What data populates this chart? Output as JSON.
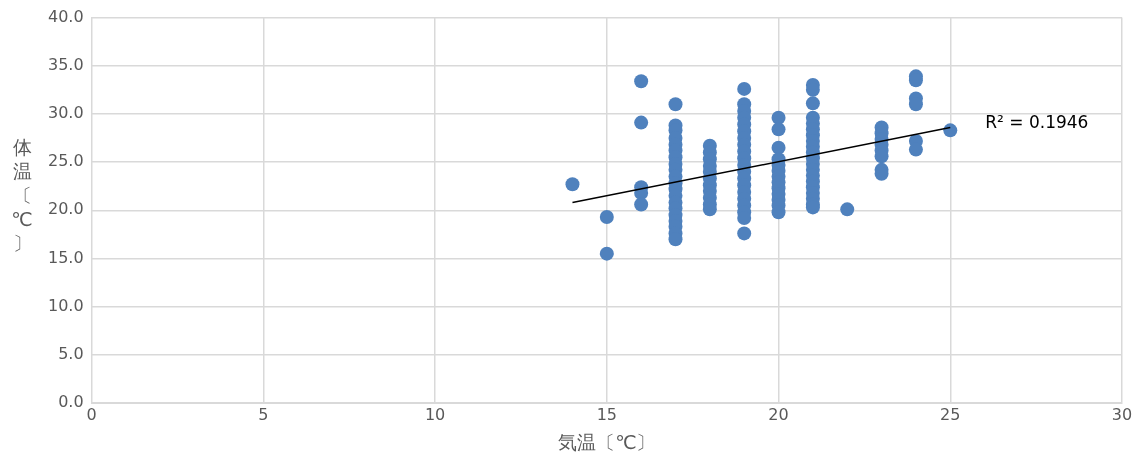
{
  "chart_data": {
    "type": "scatter",
    "xlabel": "気温〔℃〕",
    "ylabel": "体温〔℃〕",
    "series": [
      {
        "color": "#4f81bd",
        "marker": "circle",
        "x": [
          14,
          15,
          15,
          16,
          16,
          16,
          16,
          16,
          17,
          17,
          17,
          17,
          17,
          17,
          17,
          17,
          17,
          17,
          17,
          17,
          17,
          17,
          17,
          17,
          17,
          17,
          17,
          17,
          18,
          18,
          18,
          18,
          18,
          18,
          18,
          18,
          18,
          18,
          18,
          19,
          19,
          19,
          19,
          19,
          19,
          19,
          19,
          19,
          19,
          19,
          19,
          19,
          19,
          19,
          19,
          19,
          19,
          19,
          19,
          20,
          20,
          20,
          20,
          20,
          20,
          20,
          20,
          20,
          20,
          20,
          20,
          20,
          21,
          21,
          21,
          21,
          21,
          21,
          21,
          21,
          21,
          21,
          21,
          21,
          21,
          21,
          21,
          21,
          21,
          21,
          21,
          21,
          22,
          23,
          23,
          23,
          23,
          23,
          23,
          23,
          23,
          24,
          24,
          24,
          24,
          24,
          24,
          25
        ],
        "values": [
          22.7,
          19.3,
          15.5,
          33.4,
          29.1,
          22.4,
          21.8,
          20.6,
          31.0,
          28.8,
          28.3,
          27.5,
          26.8,
          26.2,
          25.5,
          24.8,
          24.2,
          23.5,
          22.8,
          22.2,
          21.5,
          20.8,
          20.2,
          19.5,
          18.9,
          18.3,
          17.6,
          17.0,
          26.7,
          26.0,
          25.3,
          24.6,
          24.0,
          23.3,
          22.6,
          22.0,
          21.3,
          20.6,
          20.1,
          32.6,
          31.0,
          30.3,
          29.6,
          28.9,
          28.2,
          27.5,
          26.8,
          26.1,
          25.4,
          24.7,
          24.0,
          23.3,
          22.6,
          21.9,
          21.2,
          20.5,
          19.8,
          19.2,
          17.6,
          29.6,
          28.4,
          26.5,
          25.3,
          24.7,
          24.1,
          23.5,
          22.9,
          22.3,
          21.7,
          21.1,
          20.5,
          19.8,
          33.0,
          32.5,
          31.1,
          29.6,
          29.0,
          28.4,
          27.8,
          27.2,
          26.6,
          26.0,
          25.4,
          24.8,
          24.2,
          23.6,
          23.0,
          22.4,
          21.8,
          21.2,
          20.6,
          20.3,
          20.1,
          28.6,
          28.0,
          27.4,
          26.8,
          26.2,
          25.6,
          24.2,
          23.8,
          33.9,
          33.5,
          31.6,
          31.0,
          27.2,
          26.3,
          28.3
        ]
      },
      {
        "type": "line",
        "color": "#000000",
        "x": [
          14,
          25
        ],
        "values": [
          20.8,
          28.6
        ]
      }
    ],
    "annotations": [
      "R² = 0.1946"
    ],
    "xlim": [
      0,
      30
    ],
    "xticks": [
      0,
      5,
      10,
      15,
      20,
      25,
      30
    ],
    "ylim": [
      0,
      40
    ],
    "yticks": [
      {
        "value": 0,
        "label": "0.0"
      },
      {
        "value": 5,
        "label": "5.0"
      },
      {
        "value": 10,
        "label": "10.0"
      },
      {
        "value": 15,
        "label": "15.0"
      },
      {
        "value": 20,
        "label": "20.0"
      },
      {
        "value": 25,
        "label": "25.0"
      },
      {
        "value": 30,
        "label": "30.0"
      },
      {
        "value": 35,
        "label": "35.0"
      },
      {
        "value": 40,
        "label": "40.0"
      }
    ],
    "grid": true,
    "legend": false
  }
}
